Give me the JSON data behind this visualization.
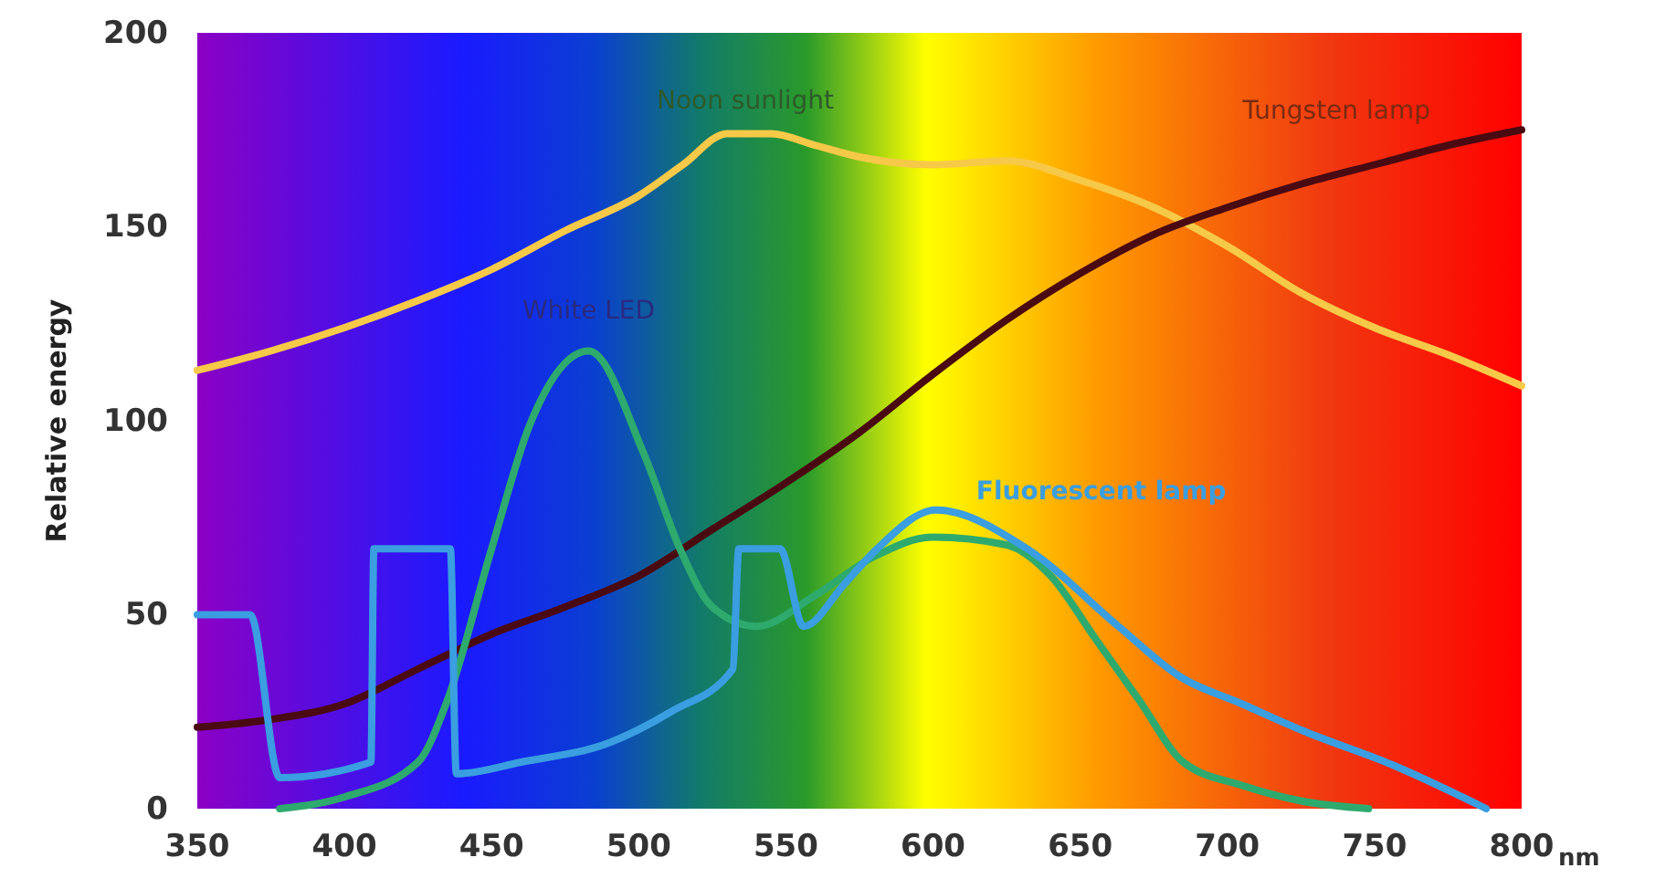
{
  "chart_data": {
    "type": "line",
    "xlabel": "nm",
    "ylabel": "Relative energy",
    "xlim": [
      350,
      800
    ],
    "xticks": [
      350,
      400,
      450,
      500,
      550,
      600,
      650,
      700,
      750,
      800
    ],
    "ylim": [
      0,
      200
    ],
    "yticks": [
      0,
      50,
      100,
      150,
      200
    ],
    "grid": false,
    "legend": false,
    "series": [
      {
        "name": "Noon sunlight",
        "color": "#f7c948",
        "x": [
          350,
          375,
          400,
          425,
          450,
          475,
          500,
          515,
          530,
          545,
          560,
          575,
          600,
          625,
          650,
          675,
          700,
          725,
          750,
          775,
          800
        ],
        "values": [
          113,
          118,
          124,
          131,
          139,
          149,
          158,
          166,
          174,
          174,
          171,
          168,
          166,
          167,
          162,
          155,
          145,
          133,
          124,
          117,
          109
        ]
      },
      {
        "name": "Tungsten lamp",
        "color": "#4a0a12",
        "x": [
          350,
          375,
          400,
          425,
          450,
          475,
          500,
          525,
          550,
          575,
          600,
          625,
          650,
          675,
          700,
          725,
          750,
          775,
          800
        ],
        "values": [
          21,
          23,
          27,
          36,
          45,
          52,
          60,
          72,
          84,
          97,
          112,
          126,
          138,
          148,
          155,
          161,
          166,
          171,
          175
        ]
      },
      {
        "name": "White LED",
        "color": "#2eaa6e",
        "x": [
          378,
          400,
          425,
          435,
          450,
          463,
          483,
          502,
          514,
          525,
          540,
          560,
          580,
          600,
          625,
          640,
          655,
          670,
          685,
          705,
          725,
          748
        ],
        "values": [
          0,
          3,
          12,
          28,
          67,
          99,
          118,
          91,
          67,
          52,
          47,
          55,
          65,
          70,
          68,
          60,
          44,
          28,
          12,
          6,
          2,
          0
        ]
      },
      {
        "name": "Fluorescent lamp",
        "color": "#3a9ee0",
        "x": [
          350,
          368,
          378,
          409,
          410,
          436,
          438,
          460,
          490,
          511,
          532,
          534,
          548,
          556,
          570,
          581,
          601,
          632,
          663,
          684,
          705,
          726,
          757,
          788
        ],
        "values": [
          50,
          50,
          8,
          12,
          67,
          67,
          9,
          12,
          17,
          25,
          36,
          67,
          67,
          47,
          58,
          67,
          77,
          67,
          47,
          34,
          27,
          20,
          11,
          0
        ]
      }
    ]
  }
}
